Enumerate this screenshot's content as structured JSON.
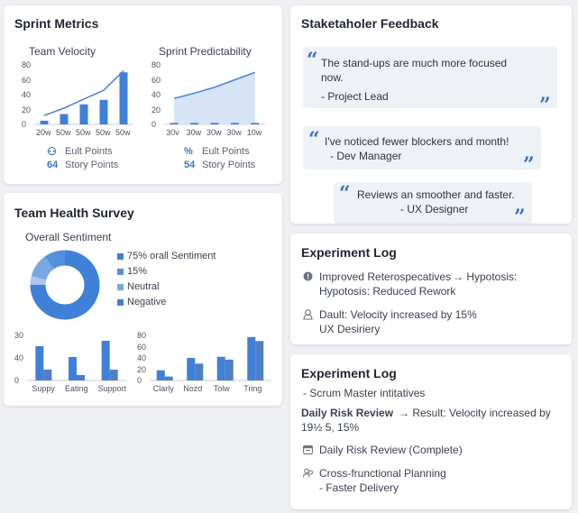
{
  "sprint_metrics": {
    "title": "Sprint Metrics",
    "velocity": {
      "title": "Team Velocity",
      "y_ticks": [
        "80",
        "60",
        "40",
        "20",
        "0"
      ],
      "x_labels": [
        "20w",
        "50w",
        "50w",
        "50w",
        "50w"
      ],
      "values": [
        5,
        14,
        27,
        33,
        70
      ],
      "trend": [
        12,
        22,
        34,
        46,
        72
      ]
    },
    "predictability": {
      "title": "Sprint Predictability",
      "y_ticks": [
        "80",
        "60",
        "40",
        "20",
        "0"
      ],
      "x_labels": [
        "30v",
        "30w",
        "30w",
        "30w",
        "10w"
      ],
      "values": [
        2,
        2,
        2,
        2,
        2
      ],
      "trend": [
        35,
        42,
        50,
        60,
        70
      ]
    },
    "legend": [
      {
        "icon": "group-icon",
        "symbol": "⚇",
        "num": "",
        "label": "Eult Points"
      },
      {
        "icon": "",
        "symbol": "",
        "num": "64",
        "label": "Story Points"
      },
      {
        "icon": "percent-icon",
        "symbol": "%",
        "num": "",
        "label": "Eult Points"
      },
      {
        "icon": "",
        "symbol": "",
        "num": "54",
        "label": "Story Points"
      }
    ]
  },
  "team_health": {
    "title": "Team Health Survey",
    "subtitle": "Overall Sentiment",
    "donut": {
      "slices": [
        0.75,
        0.04,
        0.11,
        0.1
      ],
      "colors": [
        "#3f80d8",
        "#a9c6ec",
        "#78a6e3",
        "#5590dd"
      ]
    },
    "legend": [
      "75% orall Sentiment",
      "15%",
      "Neutral",
      "Negative"
    ],
    "bars_left": {
      "y_ticks": [
        "30",
        "40",
        "0"
      ],
      "categories": [
        "Suppy",
        "Eating",
        "Support"
      ],
      "series_a": [
        38,
        26,
        44
      ],
      "series_b": [
        12,
        6,
        12
      ]
    },
    "bars_right": {
      "y_ticks": [
        "80",
        "60",
        "40",
        "20",
        "0"
      ],
      "categories": [
        "Clarly",
        "Nozd",
        "Tolw",
        "Tring"
      ],
      "series_a": [
        18,
        40,
        42,
        77
      ],
      "series_b": [
        7,
        30,
        37,
        70
      ]
    },
    "colors": {
      "primary": "#3f80d8",
      "secondary": "#4f7fc4"
    }
  },
  "feedback": {
    "title": "Staketaholer Feedback",
    "quotes": [
      {
        "lines": [
          "The stand-ups are much more focused",
          "now."
        ],
        "author": "- Project Lead"
      },
      {
        "lines": [
          "I've noticed fewer blockers and month!"
        ],
        "author": "- Dev Manager"
      },
      {
        "lines": [
          "Reviews an smoother and faster."
        ],
        "author": "- UX Designer"
      }
    ]
  },
  "experiment_log_1": {
    "title": "Experiment Log",
    "items": [
      {
        "icon": "info-icon",
        "line1": "Improved Reterospecatives",
        "arrow": "→ Hypotosis:",
        "line2": "Hypotosis: Reduced Rework"
      },
      {
        "icon": "user-icon",
        "line1": "Dault: Velocity increased by 15%",
        "line2": "UX Desiriery"
      }
    ]
  },
  "experiment_log_2": {
    "title": "Experiment Log",
    "subtitle": "- Scrum Master intitatives",
    "risk_label": "Daily Risk Review",
    "risk_result": "→ Result: Velocity increased by",
    "risk_line2": "19½ 5, 15%",
    "items": [
      {
        "icon": "calendar-icon",
        "text": "Daily Risk Review (Complete)"
      },
      {
        "icon": "people-icon",
        "line1": "Cross-frunctional Planning",
        "line2": "- Faster Delivery"
      }
    ]
  }
}
